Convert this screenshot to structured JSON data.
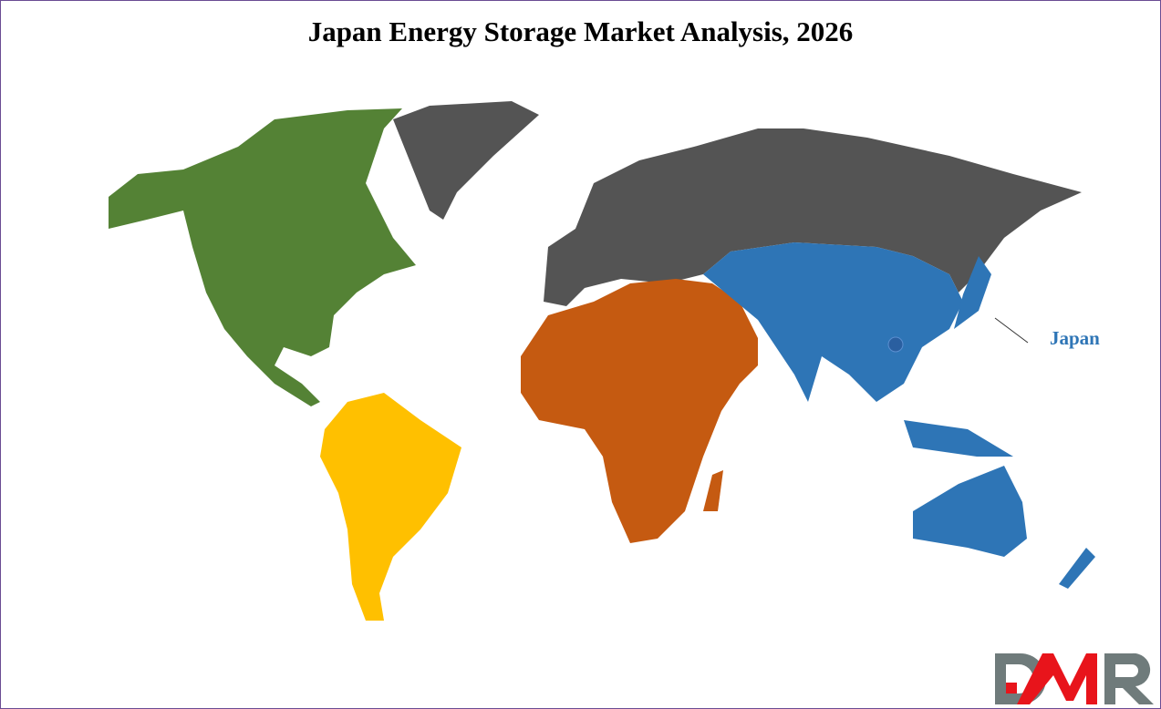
{
  "title": "Japan Energy Storage Market Analysis, 2026",
  "highlight": {
    "label": "Japan",
    "color": "#2E75B6"
  },
  "regions": [
    {
      "name": "North America",
      "color": "#548235"
    },
    {
      "name": "Europe and North Asia",
      "color": "#545454"
    },
    {
      "name": "South America",
      "color": "#FFC000"
    },
    {
      "name": "Africa and Middle East",
      "color": "#C55A11"
    },
    {
      "name": "Asia Pacific",
      "color": "#2E75B6"
    }
  ],
  "logo": {
    "text": "DMR",
    "colors": {
      "primary": "#E8141B",
      "secondary": "#6F7B7B"
    }
  }
}
